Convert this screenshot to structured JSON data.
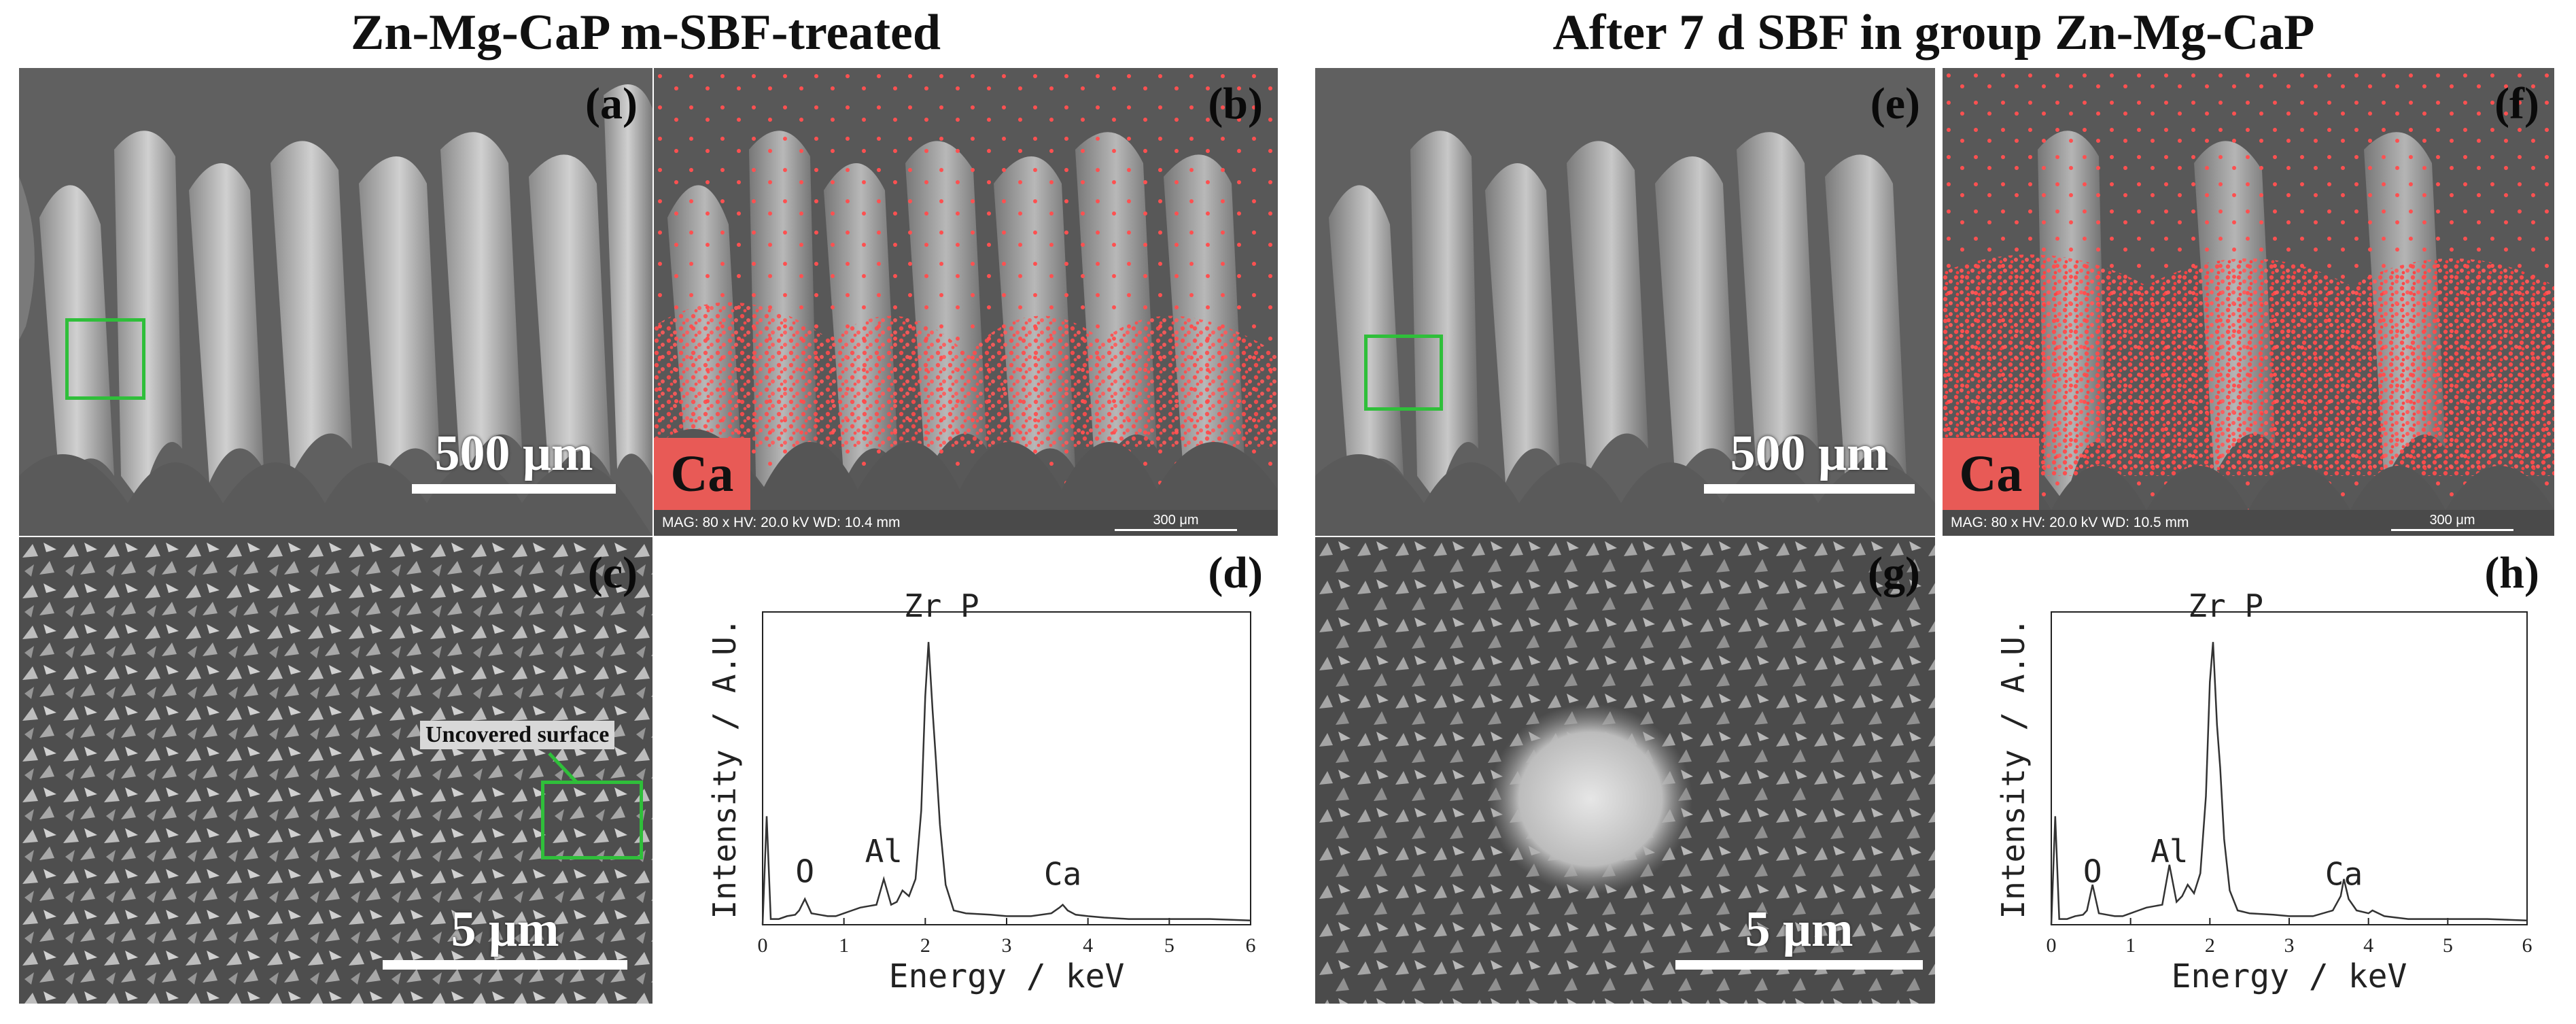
{
  "titles": {
    "left": "Zn-Mg-CaP m-SBF-treated",
    "right": "After 7 d SBF in group Zn-Mg-CaP"
  },
  "panels": {
    "a": {
      "label": "(a)",
      "scale": "500 μm"
    },
    "b": {
      "label": "(b)",
      "badge": "Ca",
      "meta": "MAG: 80 x  HV: 20.0 kV  WD: 10.4 mm",
      "mini_scale": "300 μm"
    },
    "c": {
      "label": "(c)",
      "scale": "5 μm",
      "note": "Uncovered surface"
    },
    "d": {
      "label": "(d)"
    },
    "e": {
      "label": "(e)",
      "scale": "500 μm"
    },
    "f": {
      "label": "(f)",
      "badge": "Ca",
      "meta": "MAG: 80 x  HV: 20.0 kV  WD: 10.5 mm",
      "mini_scale": "300 μm"
    },
    "g": {
      "label": "(g)",
      "scale": "5 μm"
    },
    "h": {
      "label": "(h)"
    }
  },
  "colors": {
    "ca_map": "#ff4b4b",
    "box": "#2fbf3a",
    "badge": "#e85a56"
  },
  "chart_data": [
    {
      "type": "line",
      "panel": "d",
      "xlabel": "Energy / keV",
      "ylabel": "Intensity / A.U.",
      "xlim": [
        0,
        6
      ],
      "xticks": [
        "0",
        "1",
        "2",
        "3",
        "4",
        "5",
        "6"
      ],
      "ylim": [
        0,
        1
      ],
      "peaks": [
        "O",
        "Al",
        "Zr P",
        "Ca"
      ],
      "x": [
        0,
        0.05,
        0.1,
        0.2,
        0.3,
        0.4,
        0.45,
        0.52,
        0.6,
        0.7,
        0.8,
        0.9,
        1.0,
        1.1,
        1.2,
        1.3,
        1.4,
        1.49,
        1.58,
        1.65,
        1.72,
        1.8,
        1.88,
        1.95,
        2.0,
        2.04,
        2.09,
        2.13,
        2.18,
        2.25,
        2.35,
        2.5,
        2.8,
        3.0,
        3.3,
        3.55,
        3.65,
        3.69,
        3.75,
        3.85,
        4.0,
        4.2,
        4.5,
        5.0,
        5.5,
        6.0
      ],
      "y": [
        0.0,
        0.38,
        0.02,
        0.02,
        0.03,
        0.035,
        0.05,
        0.09,
        0.04,
        0.035,
        0.03,
        0.03,
        0.04,
        0.05,
        0.06,
        0.065,
        0.07,
        0.16,
        0.07,
        0.08,
        0.12,
        0.1,
        0.16,
        0.4,
        0.8,
        0.99,
        0.75,
        0.58,
        0.35,
        0.14,
        0.05,
        0.04,
        0.035,
        0.03,
        0.03,
        0.04,
        0.06,
        0.07,
        0.05,
        0.035,
        0.03,
        0.025,
        0.02,
        0.02,
        0.02,
        0.015
      ]
    },
    {
      "type": "line",
      "panel": "h",
      "xlabel": "Energy / keV",
      "ylabel": "Intensity / A.U.",
      "xlim": [
        0,
        6
      ],
      "xticks": [
        "0",
        "1",
        "2",
        "3",
        "4",
        "5",
        "6"
      ],
      "ylim": [
        0,
        1
      ],
      "peaks": [
        "O",
        "Al",
        "Zr P",
        "Ca"
      ],
      "x": [
        0,
        0.05,
        0.1,
        0.2,
        0.3,
        0.4,
        0.45,
        0.52,
        0.6,
        0.7,
        0.8,
        0.9,
        1.0,
        1.1,
        1.2,
        1.3,
        1.4,
        1.49,
        1.58,
        1.65,
        1.72,
        1.8,
        1.88,
        1.95,
        2.0,
        2.04,
        2.09,
        2.13,
        2.18,
        2.25,
        2.35,
        2.5,
        2.8,
        3.0,
        3.3,
        3.55,
        3.65,
        3.69,
        3.75,
        3.85,
        4.0,
        4.05,
        4.2,
        4.5,
        5.0,
        5.5,
        6.0
      ],
      "y": [
        0.0,
        0.38,
        0.02,
        0.02,
        0.03,
        0.035,
        0.05,
        0.14,
        0.04,
        0.035,
        0.03,
        0.03,
        0.04,
        0.05,
        0.06,
        0.065,
        0.07,
        0.21,
        0.08,
        0.1,
        0.14,
        0.11,
        0.18,
        0.45,
        0.85,
        0.99,
        0.7,
        0.55,
        0.3,
        0.12,
        0.05,
        0.04,
        0.035,
        0.03,
        0.03,
        0.05,
        0.1,
        0.16,
        0.09,
        0.05,
        0.04,
        0.05,
        0.03,
        0.02,
        0.02,
        0.02,
        0.015
      ]
    }
  ]
}
